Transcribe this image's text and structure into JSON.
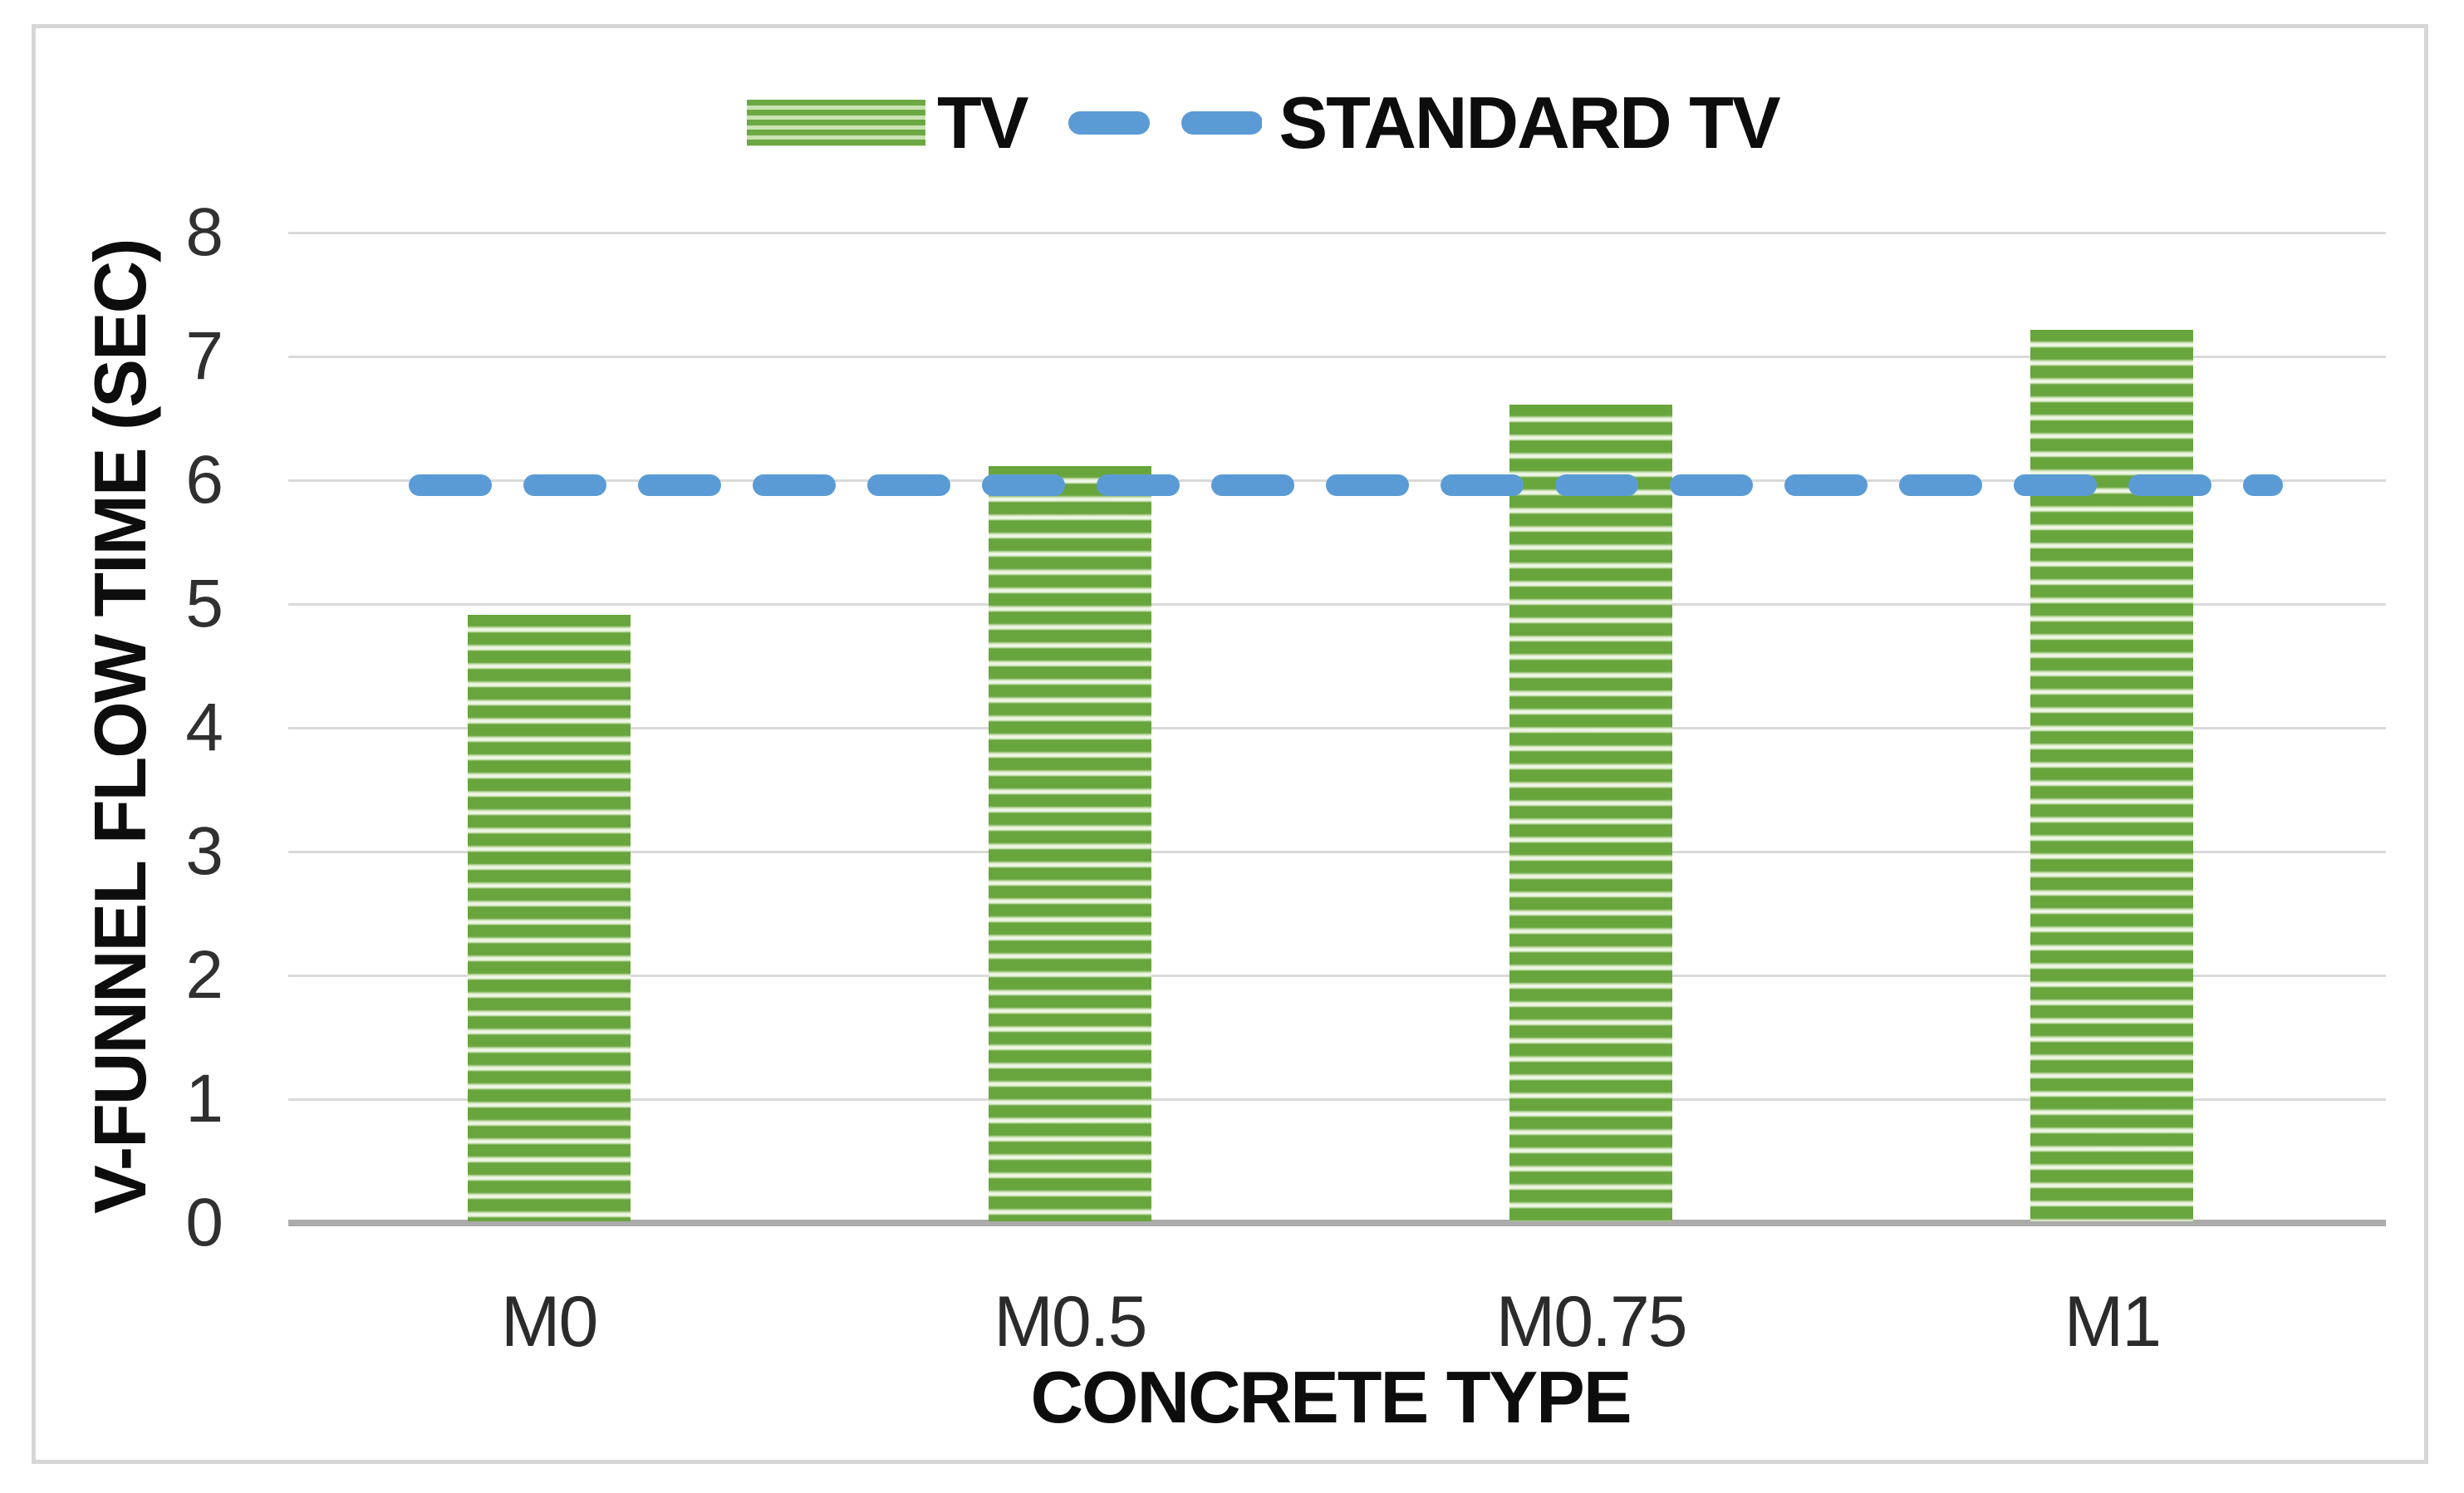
{
  "chart_data": {
    "type": "bar",
    "categories": [
      "M0",
      "M0.5",
      "M0.75",
      "M1"
    ],
    "series": [
      {
        "name": "TV",
        "type": "bar",
        "values": [
          4.9,
          6.1,
          6.6,
          7.2
        ]
      },
      {
        "name": "STANDARD TV",
        "type": "dashed-line",
        "values": [
          6,
          6,
          6,
          6
        ]
      }
    ],
    "title": "",
    "xlabel": "CONCRETE TYPE",
    "ylabel": "V-FUNNEL FLOW TIME (SEC)",
    "ylim": [
      0,
      8
    ],
    "ytick_step": 1,
    "yticks": [
      0,
      1,
      2,
      3,
      4,
      5,
      6,
      7,
      8
    ],
    "grid": "horizontal",
    "legend_position": "top",
    "standard_line_value": 6
  },
  "legend": {
    "items": [
      {
        "label": "TV",
        "swatch": "green-striped-bar-swatch"
      },
      {
        "label": "STANDARD TV",
        "swatch": "blue-dashed-line-swatch"
      }
    ]
  },
  "colors": {
    "bar_green_dark": "#68a53d",
    "bar_green_light": "#f6faf1",
    "legend_green_dark": "#6ca843",
    "legend_green_light": "#c9e2b2",
    "standard_line_blue": "#5b9bd5",
    "gridline_gray": "#d9d9d9",
    "axis_line_gray": "#ababab",
    "text_dark": "#2b2b2b",
    "frame_gray": "#d6d6d6"
  }
}
